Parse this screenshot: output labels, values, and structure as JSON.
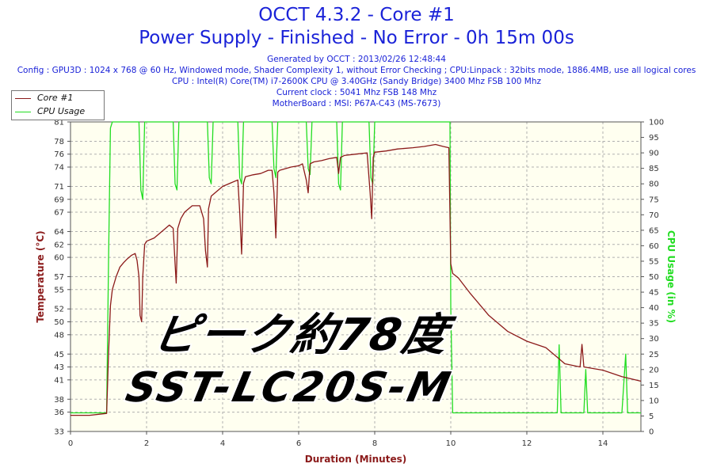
{
  "header": {
    "title_line1": "OCCT 4.3.2 - Core #1",
    "title_line2": "Power Supply - Finished - No Error - 0h 15m 00s",
    "generated": "Generated by OCCT : 2013/02/26 12:48:44",
    "config": "Config : GPU3D : 1024 x 768 @ 60 Hz, Windowed mode, Shader Complexity 1, without Error Checking ; CPU:Linpack : 32bits mode, 1886.4MB, use all logical cores",
    "cpu": "CPU : Intel(R) Core(TM) i7-2600K CPU @ 3.40GHz (Sandy Bridge) 3400 Mhz FSB 100 Mhz",
    "clock": "Current clock : 5041 Mhz FSB 148 Mhz",
    "motherboard": "MotherBoard : MSI: P67A-C43 (MS-7673)"
  },
  "overlay": {
    "line1": "ピーク約78度",
    "line2": "SST-LC20S-M"
  },
  "colors": {
    "title": "#1a22d8",
    "temperature": "#8b1a1a",
    "cpu_usage": "#22dd22",
    "plot_bg": "#fffff0",
    "grid": "#b0b0b0"
  },
  "chart_data": {
    "type": "line",
    "xlabel": "Duration (Minutes)",
    "ylabel": "Temperature (°C)",
    "y2label": "CPU Usage (in %)",
    "xlim": [
      0,
      15
    ],
    "ylim": [
      33,
      81
    ],
    "y2lim": [
      0,
      100
    ],
    "x_ticks": [
      0,
      2,
      4,
      6,
      8,
      10,
      12,
      14
    ],
    "y_ticks": [
      33,
      36,
      38,
      41,
      43,
      45,
      48,
      50,
      52,
      55,
      57,
      60,
      62,
      64,
      67,
      69,
      71,
      74,
      76,
      78,
      81
    ],
    "y2_ticks": [
      0,
      5,
      10,
      15,
      20,
      25,
      30,
      35,
      40,
      45,
      50,
      55,
      60,
      65,
      70,
      75,
      80,
      85,
      90,
      95,
      100
    ],
    "grid": true,
    "legend_position": "top-left",
    "series": [
      {
        "name": "Core #1",
        "axis": "left",
        "x": [
          0,
          0.5,
          0.95,
          1.0,
          1.05,
          1.1,
          1.2,
          1.3,
          1.4,
          1.5,
          1.6,
          1.7,
          1.75,
          1.8,
          1.83,
          1.87,
          1.9,
          1.95,
          2.0,
          2.2,
          2.4,
          2.6,
          2.7,
          2.75,
          2.78,
          2.82,
          2.9,
          3.0,
          3.2,
          3.4,
          3.5,
          3.55,
          3.6,
          3.63,
          3.7,
          3.8,
          4.0,
          4.2,
          4.4,
          4.45,
          4.5,
          4.55,
          4.6,
          4.8,
          5.0,
          5.2,
          5.3,
          5.35,
          5.4,
          5.45,
          5.5,
          5.8,
          6.0,
          6.1,
          6.2,
          6.25,
          6.3,
          6.4,
          6.6,
          6.8,
          7.0,
          7.05,
          7.1,
          7.2,
          7.5,
          7.8,
          7.88,
          7.92,
          7.96,
          8.0,
          8.3,
          8.6,
          9.0,
          9.3,
          9.6,
          9.8,
          9.95,
          10.0,
          10.05,
          10.2,
          10.5,
          11.0,
          11.5,
          12.0,
          12.5,
          12.8,
          13.0,
          13.4,
          13.45,
          13.5,
          14.0,
          14.5,
          15.0
        ],
        "y": [
          35.5,
          35.5,
          35.8,
          45.0,
          52.5,
          55.0,
          57.0,
          58.5,
          59.2,
          59.8,
          60.3,
          60.6,
          59.5,
          57.0,
          51.0,
          50.0,
          57.0,
          62.0,
          62.5,
          63.0,
          64.0,
          65.0,
          64.5,
          59.0,
          56.0,
          64.5,
          66.0,
          67.0,
          68.0,
          68.0,
          66.0,
          61.0,
          58.5,
          67.5,
          69.5,
          70.0,
          71.0,
          71.5,
          72.0,
          67.0,
          60.5,
          71.5,
          72.5,
          72.8,
          73.0,
          73.5,
          73.5,
          70.0,
          63.0,
          73.2,
          73.5,
          74.0,
          74.2,
          74.5,
          72.0,
          70.0,
          74.5,
          74.8,
          75.0,
          75.3,
          75.5,
          73.0,
          75.5,
          75.8,
          76.0,
          76.2,
          70.0,
          66.0,
          75.5,
          76.3,
          76.5,
          76.8,
          77.0,
          77.2,
          77.5,
          77.2,
          77.0,
          59.0,
          57.5,
          56.8,
          54.5,
          51.0,
          48.5,
          47.0,
          46.0,
          44.5,
          43.5,
          43.0,
          46.5,
          43.0,
          42.5,
          41.5,
          40.8
        ]
      },
      {
        "name": "CPU Usage",
        "axis": "right",
        "x": [
          0,
          0.5,
          0.95,
          1.0,
          1.05,
          1.1,
          1.8,
          1.85,
          1.9,
          1.95,
          2.7,
          2.75,
          2.8,
          2.85,
          3.6,
          3.65,
          3.7,
          3.75,
          4.4,
          4.45,
          4.5,
          4.55,
          5.3,
          5.35,
          5.4,
          5.45,
          6.2,
          6.25,
          6.3,
          6.35,
          7.0,
          7.05,
          7.1,
          7.15,
          7.85,
          7.9,
          7.95,
          8.0,
          9.98,
          10.0,
          10.05,
          10.5,
          11.0,
          11.5,
          12.0,
          12.5,
          12.8,
          12.85,
          12.9,
          13.0,
          13.5,
          13.55,
          13.6,
          14.0,
          14.5,
          14.6,
          14.65,
          14.7,
          15.0
        ],
        "y": [
          6,
          6,
          6,
          55,
          98,
          100,
          100,
          78,
          75,
          100,
          100,
          80,
          78,
          100,
          100,
          82,
          80,
          100,
          100,
          82,
          80,
          100,
          100,
          85,
          82,
          100,
          100,
          85,
          83,
          100,
          100,
          80,
          78,
          100,
          100,
          82,
          80,
          100,
          100,
          40,
          6,
          6,
          6,
          6,
          6,
          6,
          6,
          28,
          6,
          6,
          6,
          20,
          6,
          6,
          6,
          25,
          6,
          6,
          6
        ]
      }
    ]
  }
}
